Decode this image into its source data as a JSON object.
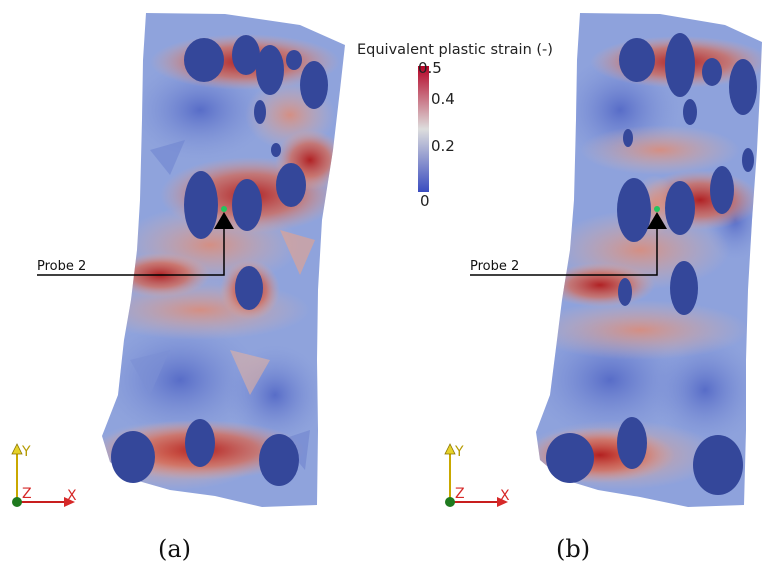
{
  "colorbar": {
    "title": "Equivalent plastic strain (-)",
    "ticks": [
      "0.5",
      "0.4",
      "0.2",
      "0"
    ]
  },
  "probe_label": "Probe 2",
  "axes_triad": {
    "y": "Y",
    "z": "Z",
    "x": "X"
  },
  "captions": {
    "a": "(a)",
    "b": "(b)"
  },
  "colors": {
    "low": "#3a4aa8",
    "mid": "#dcdcdc",
    "high": "#b01818",
    "void": "#34479a"
  }
}
